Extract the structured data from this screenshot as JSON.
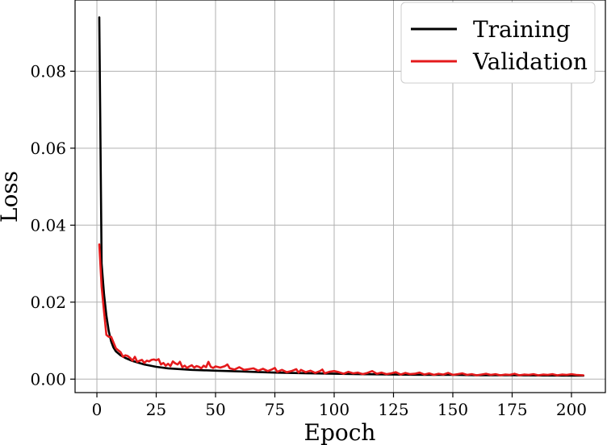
{
  "chart_data": {
    "type": "line",
    "title": "",
    "xlabel": "Epoch",
    "ylabel": "Loss",
    "xlim": [
      -9.2,
      214.3
    ],
    "ylim": [
      -0.0035,
      0.0985
    ],
    "xticks": [
      0,
      25,
      50,
      75,
      100,
      125,
      150,
      175,
      200
    ],
    "yticks": [
      0.0,
      0.02,
      0.04,
      0.06,
      0.08
    ],
    "ytick_labels": [
      "0.00",
      "0.02",
      "0.04",
      "0.06",
      "0.08"
    ],
    "grid": true,
    "legend_position": "top-right",
    "series": [
      {
        "name": "Training",
        "color": "#000000",
        "x": [
          1,
          2,
          3,
          4,
          5,
          6,
          7,
          8,
          10,
          12,
          15,
          20,
          25,
          30,
          40,
          50,
          60,
          75,
          90,
          100,
          110,
          125,
          140,
          150,
          160,
          175,
          190,
          200,
          205
        ],
        "y": [
          0.094,
          0.03,
          0.022,
          0.0165,
          0.0125,
          0.0098,
          0.0082,
          0.0072,
          0.0062,
          0.0055,
          0.0047,
          0.0038,
          0.0032,
          0.0028,
          0.0024,
          0.0022,
          0.002,
          0.0017,
          0.0015,
          0.0014,
          0.0013,
          0.0012,
          0.0011,
          0.0011,
          0.001,
          0.001,
          0.00095,
          0.0009,
          0.0009
        ]
      },
      {
        "name": "Validation",
        "color": "#e41a1c",
        "x": [
          1,
          2,
          3,
          4,
          5,
          6,
          7,
          8,
          9,
          10,
          11,
          12,
          13,
          14,
          15,
          16,
          17,
          18,
          19,
          20,
          21,
          22,
          23,
          24,
          25,
          26,
          27,
          28,
          29,
          30,
          31,
          32,
          33,
          34,
          35,
          36,
          37,
          38,
          39,
          40,
          41,
          42,
          43,
          44,
          45,
          46,
          47,
          48,
          49,
          50,
          52,
          54,
          55,
          56,
          58,
          60,
          62,
          64,
          66,
          68,
          70,
          72,
          74,
          75,
          76,
          78,
          80,
          82,
          84,
          85,
          86,
          88,
          90,
          92,
          94,
          95,
          96,
          98,
          100,
          102,
          104,
          106,
          108,
          110,
          112,
          114,
          116,
          118,
          120,
          122,
          124,
          126,
          128,
          130,
          132,
          134,
          136,
          138,
          140,
          142,
          144,
          146,
          148,
          150,
          152,
          154,
          156,
          158,
          160,
          162,
          164,
          166,
          168,
          170,
          172,
          174,
          176,
          178,
          180,
          182,
          184,
          186,
          188,
          190,
          192,
          194,
          196,
          198,
          200,
          202,
          205
        ],
        "y": [
          0.035,
          0.024,
          0.0175,
          0.0115,
          0.011,
          0.011,
          0.0095,
          0.008,
          0.0075,
          0.007,
          0.0058,
          0.0062,
          0.006,
          0.0055,
          0.0048,
          0.0058,
          0.0045,
          0.0048,
          0.005,
          0.0042,
          0.0048,
          0.0046,
          0.005,
          0.0051,
          0.0049,
          0.0052,
          0.0038,
          0.0042,
          0.0035,
          0.004,
          0.0034,
          0.0046,
          0.0041,
          0.0038,
          0.0045,
          0.0031,
          0.0035,
          0.0029,
          0.0033,
          0.0036,
          0.003,
          0.0034,
          0.0032,
          0.0028,
          0.0035,
          0.0031,
          0.0045,
          0.0032,
          0.0029,
          0.0033,
          0.003,
          0.0034,
          0.0038,
          0.0028,
          0.0025,
          0.0031,
          0.0024,
          0.0026,
          0.0028,
          0.0022,
          0.0027,
          0.0021,
          0.0026,
          0.0029,
          0.0019,
          0.0024,
          0.0018,
          0.0021,
          0.0026,
          0.0017,
          0.0024,
          0.0018,
          0.0022,
          0.0016,
          0.0021,
          0.0025,
          0.0015,
          0.0019,
          0.0021,
          0.0018,
          0.0014,
          0.0019,
          0.0015,
          0.0017,
          0.0013,
          0.0016,
          0.0021,
          0.0014,
          0.0017,
          0.0013,
          0.0015,
          0.0018,
          0.0012,
          0.0016,
          0.0013,
          0.0014,
          0.0017,
          0.0012,
          0.0015,
          0.0011,
          0.0014,
          0.0012,
          0.0016,
          0.0011,
          0.0013,
          0.0015,
          0.0011,
          0.0013,
          0.001,
          0.0012,
          0.0014,
          0.0011,
          0.0013,
          0.001,
          0.0012,
          0.0011,
          0.0014,
          0.001,
          0.0012,
          0.0011,
          0.0013,
          0.001,
          0.0012,
          0.0011,
          0.0013,
          0.001,
          0.0012,
          0.0011,
          0.0013,
          0.0011,
          0.001
        ]
      }
    ]
  }
}
